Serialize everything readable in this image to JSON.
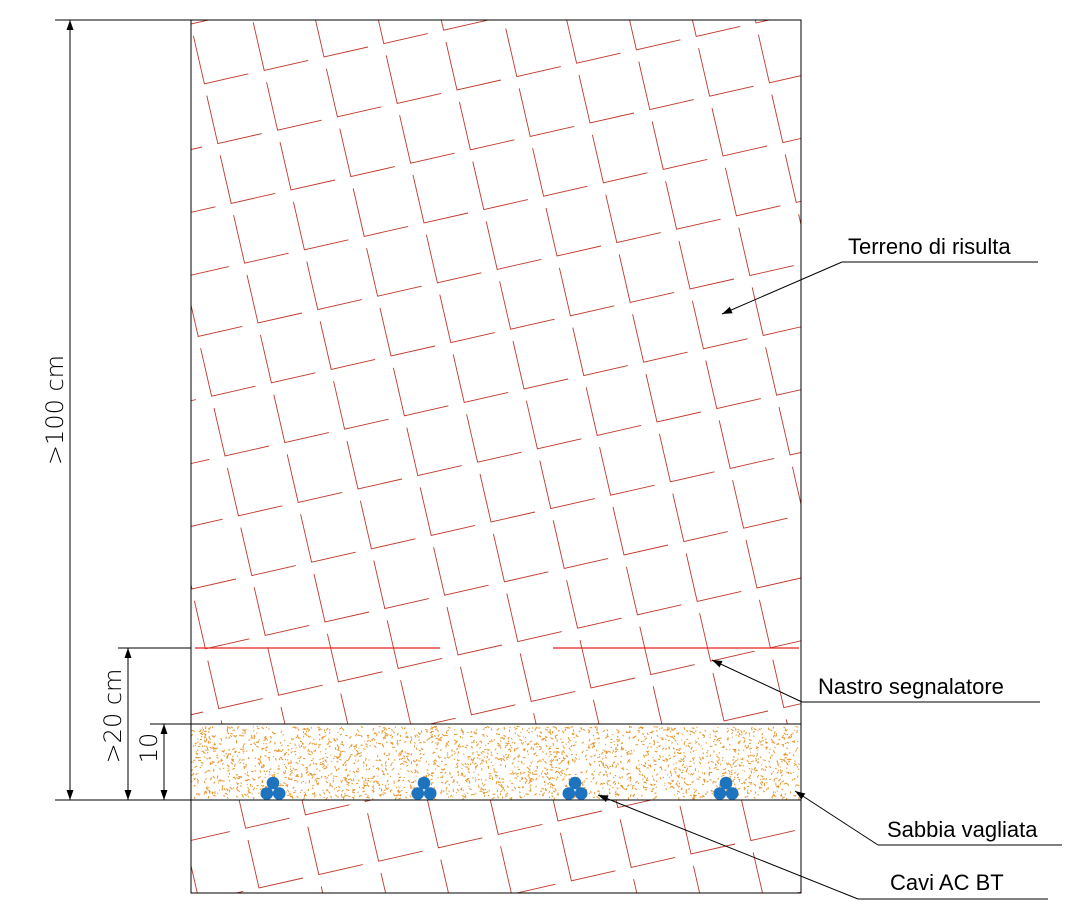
{
  "labels": {
    "terreno": "Terreno di risulta",
    "nastro": "Nastro segnalatore",
    "sabbia": "Sabbia vagliata",
    "cavi": "Cavi AC BT"
  },
  "dimensions": {
    "total": ">100  cm",
    "tape": ">20  cm",
    "sand": "10"
  },
  "colors": {
    "soil_hatch": "#c0392b",
    "warning_tape": "#e8231f",
    "sand_dots": "#e8962a",
    "cables": "#1e73be",
    "lines": "#000000"
  },
  "cable_groups": 4
}
